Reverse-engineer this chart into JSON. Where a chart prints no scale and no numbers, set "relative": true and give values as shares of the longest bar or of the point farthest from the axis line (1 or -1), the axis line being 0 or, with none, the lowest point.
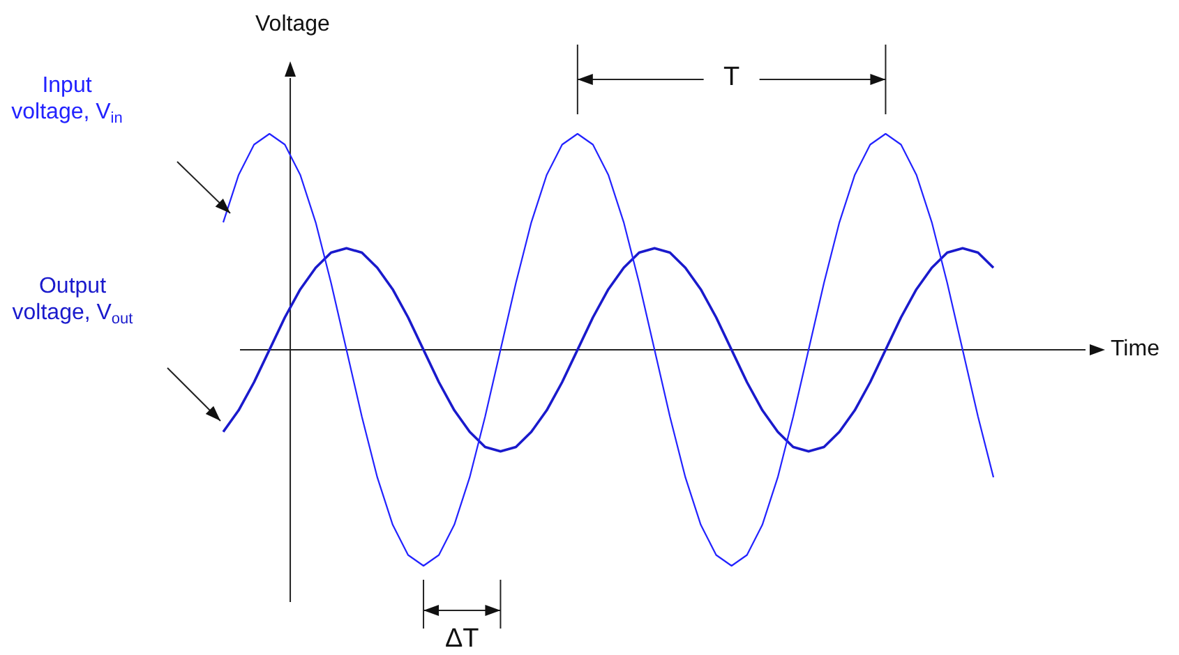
{
  "chart_data": {
    "type": "line",
    "relative": true,
    "xlabel": "Time",
    "ylabel": "Voltage",
    "categories": [
      null,
      null,
      null,
      null,
      null,
      null,
      null,
      null,
      null,
      null,
      null,
      null,
      null,
      null,
      null,
      null,
      null,
      null,
      null,
      null,
      null,
      null,
      null,
      null,
      null,
      null,
      null,
      null,
      null,
      null,
      null,
      null,
      null,
      null,
      null,
      null,
      null,
      null,
      null,
      null,
      null,
      null,
      null,
      null,
      null,
      null,
      null,
      null,
      null,
      null,
      null
    ],
    "series": [
      {
        "name": "Input voltage, V$_{in}$",
        "color": "#2222ff",
        "values": [
          0.59,
          0.81,
          0.95,
          1,
          0.95,
          0.81,
          0.59,
          0.31,
          0,
          -0.31,
          -0.59,
          -0.81,
          -0.95,
          -1,
          -0.95,
          -0.81,
          -0.59,
          -0.31,
          0,
          0.31,
          0.59,
          0.81,
          0.95,
          1,
          0.95,
          0.81,
          0.59,
          0.31,
          0,
          -0.31,
          -0.59,
          -0.81,
          -0.95,
          -1,
          -0.95,
          -0.81,
          -0.59,
          -0.31,
          0,
          0.31,
          0.59,
          0.81,
          0.95,
          1,
          0.95,
          0.81,
          0.59,
          0.31,
          0,
          -0.31,
          -0.59
        ]
      },
      {
        "name": "Output voltage, V$_{out}$",
        "color": "#1a1acc",
        "values": [
          -0.38,
          -0.28,
          -0.15,
          0,
          0.15,
          0.28,
          0.38,
          0.45,
          0.47,
          0.45,
          0.38,
          0.28,
          0.15,
          0,
          -0.15,
          -0.28,
          -0.38,
          -0.45,
          -0.47,
          -0.45,
          -0.38,
          -0.28,
          -0.15,
          0,
          0.15,
          0.28,
          0.38,
          0.45,
          0.47,
          0.45,
          0.38,
          0.28,
          0.15,
          0,
          -0.15,
          -0.28,
          -0.38,
          -0.45,
          -0.47,
          -0.45,
          -0.38,
          -0.28,
          -0.15,
          0,
          0.15,
          0.28,
          0.38,
          0.45,
          0.47,
          0.45,
          0.38
        ]
      }
    ],
    "annotations": [
      "T",
      "ΔT"
    ],
    "marker": "none",
    "grid": false,
    "legend": false
  }
}
